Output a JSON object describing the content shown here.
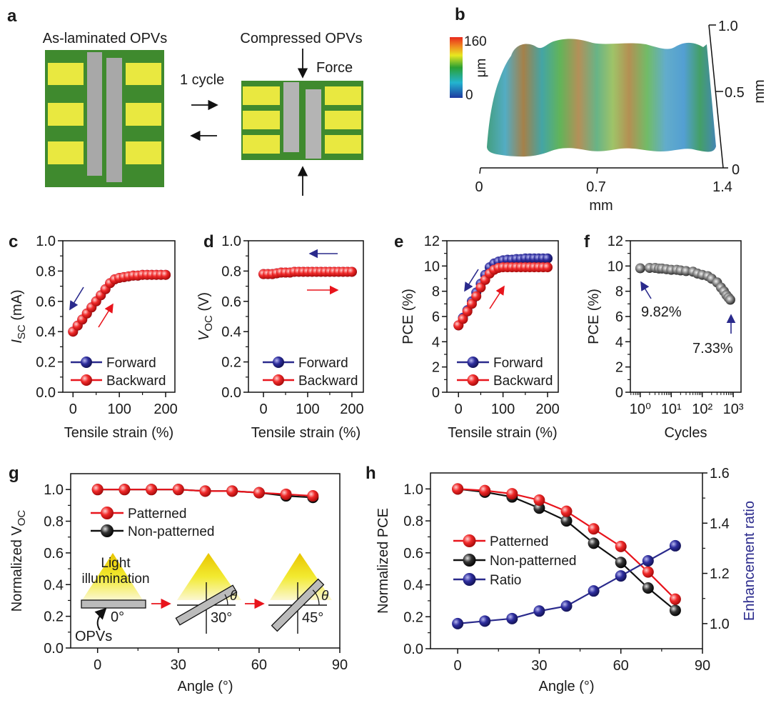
{
  "panel_labels": {
    "a": "a",
    "b": "b",
    "c": "c",
    "d": "d",
    "e": "e",
    "f": "f",
    "g": "g",
    "h": "h"
  },
  "panel_a": {
    "left_title": "As-laminated OPVs",
    "right_title": "Compressed OPVs",
    "cycle_label": "1 cycle",
    "force_label": "Force",
    "colors": {
      "substrate": "#3f8a2e",
      "electrode": "#e9e840",
      "strip": "#a8a8a8"
    }
  },
  "panel_b": {
    "colorbar_max": "160",
    "colorbar_min": "0",
    "colorbar_unit": "μm",
    "x_ticks": [
      "0",
      "0.7",
      "1.4"
    ],
    "x_unit": "mm",
    "y_ticks": [
      "1.0",
      "0.5",
      "0"
    ],
    "y_unit": "mm"
  },
  "chart_data": [
    {
      "id": "c",
      "type": "scatter",
      "xlabel": "Tensile strain (%)",
      "ylabel": {
        "main": "I",
        "sub": "SC",
        "unit": " (mA)",
        "italic_main": true
      },
      "xlim": [
        -22,
        220
      ],
      "ylim": [
        0,
        1.0
      ],
      "xticks": [
        0,
        100,
        200
      ],
      "xtick_labels": [
        "0",
        "100",
        "200"
      ],
      "xminor": [
        50,
        150
      ],
      "yticks": [
        0,
        0.2,
        0.4,
        0.6,
        0.8,
        1.0
      ],
      "ytick_labels": [
        "0.0",
        "0.2",
        "0.4",
        "0.6",
        "0.8",
        "1.0"
      ],
      "yminor": [
        0.1,
        0.3,
        0.5,
        0.7,
        0.9
      ],
      "legend": "bottom-left",
      "x": [
        0,
        10,
        20,
        30,
        40,
        50,
        60,
        70,
        80,
        90,
        100,
        110,
        120,
        130,
        140,
        150,
        160,
        170,
        180,
        190,
        200
      ],
      "series": [
        {
          "name": "Forward",
          "color": "#2a2a8c",
          "values": [
            0.4,
            0.44,
            0.48,
            0.52,
            0.56,
            0.6,
            0.64,
            0.68,
            0.72,
            0.745,
            0.755,
            0.76,
            0.765,
            0.77,
            0.77,
            0.775,
            0.775,
            0.775,
            0.775,
            0.775,
            0.775
          ]
        },
        {
          "name": "Backward",
          "color": "#e8141c",
          "values": [
            0.4,
            0.44,
            0.48,
            0.52,
            0.56,
            0.6,
            0.64,
            0.68,
            0.72,
            0.745,
            0.755,
            0.76,
            0.765,
            0.77,
            0.77,
            0.775,
            0.775,
            0.775,
            0.775,
            0.775,
            0.775
          ]
        }
      ]
    },
    {
      "id": "d",
      "type": "scatter",
      "xlabel": "Tensile strain (%)",
      "ylabel": {
        "main": "V",
        "sub": "OC",
        "unit": " (V)",
        "italic_main": true
      },
      "xlim": [
        -34,
        226
      ],
      "ylim": [
        0,
        1.0
      ],
      "xticks": [
        0,
        100,
        200
      ],
      "xtick_labels": [
        "0",
        "100",
        "200"
      ],
      "xminor": [
        50,
        150
      ],
      "yticks": [
        0,
        0.2,
        0.4,
        0.6,
        0.8,
        1.0
      ],
      "ytick_labels": [
        "0.0",
        "0.2",
        "0.4",
        "0.6",
        "0.8",
        "1.0"
      ],
      "yminor": [
        0.1,
        0.3,
        0.5,
        0.7,
        0.9
      ],
      "legend": "bottom-left",
      "x": [
        0,
        10,
        20,
        30,
        40,
        50,
        60,
        70,
        80,
        90,
        100,
        110,
        120,
        130,
        140,
        150,
        160,
        170,
        180,
        190,
        200
      ],
      "series": [
        {
          "name": "Forward",
          "color": "#2a2a8c",
          "values": [
            0.78,
            0.78,
            0.78,
            0.785,
            0.79,
            0.79,
            0.79,
            0.795,
            0.795,
            0.795,
            0.795,
            0.795,
            0.795,
            0.795,
            0.795,
            0.795,
            0.795,
            0.795,
            0.795,
            0.795,
            0.795
          ]
        },
        {
          "name": "Backward",
          "color": "#e8141c",
          "values": [
            0.78,
            0.78,
            0.78,
            0.785,
            0.79,
            0.79,
            0.79,
            0.795,
            0.795,
            0.795,
            0.795,
            0.795,
            0.795,
            0.795,
            0.795,
            0.795,
            0.795,
            0.795,
            0.795,
            0.795,
            0.795
          ]
        }
      ]
    },
    {
      "id": "e",
      "type": "scatter",
      "xlabel": "Tensile strain (%)",
      "ylabel": {
        "main": "PCE (%)",
        "sub": "",
        "unit": "",
        "italic_main": false
      },
      "xlim": [
        -26,
        224
      ],
      "ylim": [
        0,
        12
      ],
      "xticks": [
        0,
        100,
        200
      ],
      "xtick_labels": [
        "0",
        "100",
        "200"
      ],
      "xminor": [
        50,
        150
      ],
      "yticks": [
        0,
        2,
        4,
        6,
        8,
        10,
        12
      ],
      "ytick_labels": [
        "0",
        "2",
        "4",
        "6",
        "8",
        "10",
        "12"
      ],
      "yminor": [
        1,
        3,
        5,
        7,
        9,
        11
      ],
      "legend": "bottom-left",
      "x": [
        0,
        10,
        20,
        30,
        40,
        50,
        60,
        70,
        80,
        90,
        100,
        110,
        120,
        130,
        140,
        150,
        160,
        170,
        180,
        190,
        200
      ],
      "series": [
        {
          "name": "Forward",
          "color": "#2a2a8c",
          "values": [
            5.3,
            5.9,
            6.5,
            7.2,
            7.9,
            8.6,
            9.3,
            9.9,
            10.2,
            10.35,
            10.45,
            10.5,
            10.5,
            10.55,
            10.55,
            10.6,
            10.6,
            10.6,
            10.6,
            10.6,
            10.6
          ]
        },
        {
          "name": "Backward",
          "color": "#e8141c",
          "values": [
            5.3,
            5.8,
            6.4,
            7.0,
            7.6,
            8.3,
            8.9,
            9.4,
            9.7,
            9.85,
            9.9,
            9.9,
            9.9,
            9.9,
            9.9,
            9.9,
            9.9,
            9.9,
            9.9,
            9.9,
            9.9
          ]
        }
      ]
    },
    {
      "id": "f",
      "type": "scatter",
      "xscale": "log",
      "xlabel": "Cycles",
      "ylabel": {
        "main": "PCE (%)",
        "sub": "",
        "unit": "",
        "italic_main": false
      },
      "xlim": [
        0.48,
        1780
      ],
      "ylim": [
        0,
        12
      ],
      "xticks": [
        1,
        10,
        100,
        1000
      ],
      "xtick_labels": [
        "10⁰",
        "10¹",
        "10²",
        "10³"
      ],
      "yticks": [
        0,
        2,
        4,
        6,
        8,
        10,
        12
      ],
      "ytick_labels": [
        "0",
        "2",
        "4",
        "6",
        "8",
        "10",
        "12"
      ],
      "yminor": [
        1,
        3,
        5,
        7,
        9,
        11
      ],
      "x": [
        1,
        2,
        3,
        4,
        5,
        7,
        10,
        15,
        20,
        30,
        50,
        70,
        100,
        150,
        200,
        300,
        400,
        500,
        600,
        700,
        800
      ],
      "series": [
        {
          "color": "#222222",
          "values": [
            9.82,
            9.85,
            9.85,
            9.8,
            9.8,
            9.75,
            9.7,
            9.7,
            9.65,
            9.6,
            9.55,
            9.4,
            9.3,
            9.2,
            9.0,
            8.7,
            8.3,
            8.0,
            7.7,
            7.5,
            7.33
          ]
        }
      ],
      "annotations": [
        {
          "text": "9.82%",
          "x": 1,
          "y": 9.82
        },
        {
          "text": "7.33%",
          "x": 800,
          "y": 7.33
        }
      ]
    },
    {
      "id": "g",
      "type": "line",
      "xlabel": "Angle (°)",
      "ylabel": {
        "main": "Normalized V",
        "sub": "OC",
        "unit": "",
        "italic_main": false
      },
      "xlim": [
        -10,
        90
      ],
      "ylim": [
        0,
        1.1
      ],
      "xticks": [
        0,
        30,
        60,
        90
      ],
      "xtick_labels": [
        "0",
        "30",
        "60",
        "90"
      ],
      "xminor": [
        15,
        45,
        75
      ],
      "yticks": [
        0,
        0.2,
        0.4,
        0.6,
        0.8,
        1.0
      ],
      "ytick_labels": [
        "0.0",
        "0.2",
        "0.4",
        "0.6",
        "0.8",
        "1.0"
      ],
      "yminor": [
        0.1,
        0.3,
        0.5,
        0.7,
        0.9
      ],
      "legend": "top-left",
      "x": [
        0,
        10,
        20,
        30,
        40,
        50,
        60,
        70,
        80
      ],
      "series": [
        {
          "name": "Non-patterned",
          "color": "#111111",
          "values": [
            1.0,
            1.0,
            1.0,
            1.0,
            0.99,
            0.99,
            0.98,
            0.96,
            0.95
          ]
        },
        {
          "name": "Patterned",
          "color": "#e8141c",
          "values": [
            1.0,
            1.0,
            1.0,
            1.0,
            0.99,
            0.99,
            0.98,
            0.97,
            0.96
          ]
        }
      ],
      "legend_order": [
        "Patterned",
        "Non-patterned"
      ],
      "inset": {
        "light_label_1": "Light",
        "light_label_2": "illumination",
        "device_label": "OPVs",
        "angles": [
          "0°",
          "30°",
          "45°"
        ],
        "theta": "θ"
      }
    },
    {
      "id": "h",
      "type": "line",
      "xlabel": "Angle (°)",
      "ylabel": {
        "main": "Normalized PCE",
        "sub": "",
        "unit": "",
        "italic_main": false
      },
      "y2label": "Enhancement ratio",
      "y2color": "#2a2a8c",
      "xlim": [
        -10,
        90
      ],
      "ylim": [
        0,
        1.1
      ],
      "y2lim": [
        0.9,
        1.6
      ],
      "xticks": [
        0,
        30,
        60,
        90
      ],
      "xtick_labels": [
        "0",
        "30",
        "60",
        "90"
      ],
      "xminor": [
        15,
        45,
        75
      ],
      "yticks": [
        0,
        0.2,
        0.4,
        0.6,
        0.8,
        1.0
      ],
      "ytick_labels": [
        "0.0",
        "0.2",
        "0.4",
        "0.6",
        "0.8",
        "1.0"
      ],
      "yminor": [
        0.1,
        0.3,
        0.5,
        0.7,
        0.9
      ],
      "y2ticks": [
        1.0,
        1.2,
        1.4,
        1.6
      ],
      "y2tick_labels": [
        "1.0",
        "1.2",
        "1.4",
        "1.6"
      ],
      "y2minor": [
        1.1,
        1.3,
        1.5
      ],
      "legend": "center-left",
      "x": [
        0,
        10,
        20,
        30,
        40,
        50,
        60,
        70,
        80
      ],
      "series": [
        {
          "name": "Non-patterned",
          "color": "#111111",
          "values": [
            1.0,
            0.98,
            0.95,
            0.88,
            0.8,
            0.66,
            0.54,
            0.38,
            0.24
          ]
        },
        {
          "name": "Patterned",
          "color": "#e8141c",
          "values": [
            1.0,
            0.99,
            0.97,
            0.93,
            0.86,
            0.75,
            0.64,
            0.48,
            0.31
          ]
        },
        {
          "name": "Ratio",
          "color": "#2a2a8c",
          "axis": "right",
          "values": [
            1.0,
            1.01,
            1.02,
            1.05,
            1.07,
            1.13,
            1.19,
            1.25,
            1.31
          ]
        }
      ],
      "legend_order": [
        "Patterned",
        "Non-patterned",
        "Ratio"
      ]
    }
  ]
}
